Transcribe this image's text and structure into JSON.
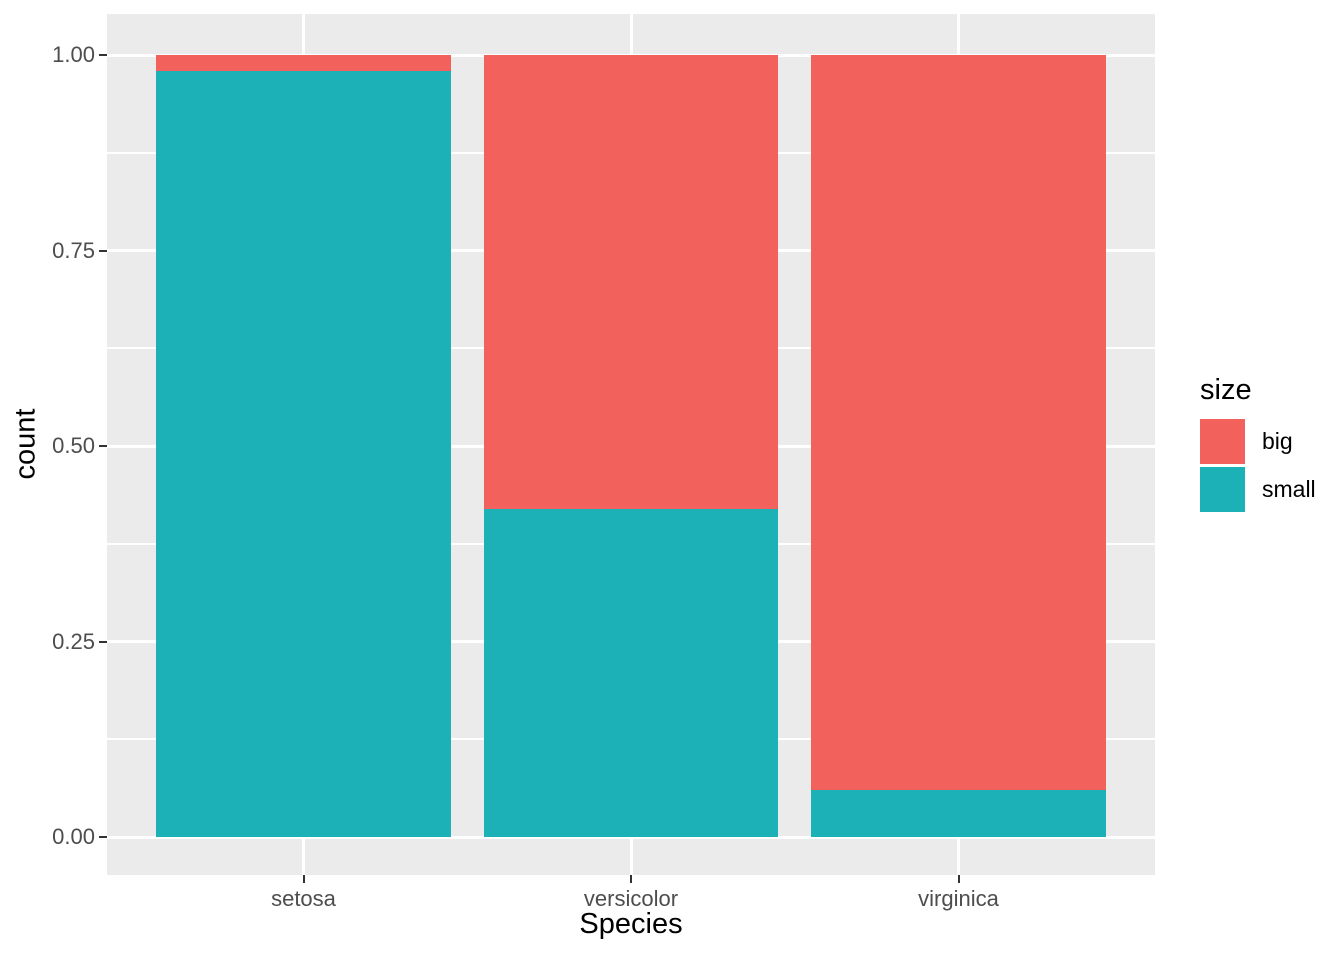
{
  "chart_data": {
    "type": "bar",
    "subtype": "stacked-normalized",
    "orientation": "vertical",
    "categories": [
      "setosa",
      "versicolor",
      "virginica"
    ],
    "series": [
      {
        "name": "big",
        "color": "#F2615C",
        "values": [
          0.02,
          0.58,
          0.94
        ]
      },
      {
        "name": "small",
        "color": "#1BB1B6",
        "values": [
          0.98,
          0.42,
          0.06
        ]
      }
    ],
    "title": "",
    "xlabel": "Species",
    "ylabel": "count",
    "ylim": [
      0,
      1
    ],
    "y_ticks": [
      0,
      0.25,
      0.5,
      0.75,
      1
    ],
    "y_tick_labels": [
      "0.00",
      "0.25",
      "0.50",
      "0.75",
      "1.00"
    ],
    "y_minor_ticks": [
      0.125,
      0.375,
      0.625,
      0.875
    ],
    "grid": true,
    "panel_background": "#EBEBEB",
    "grid_color": "#FFFFFF",
    "axis_text_color": "#4D4D4D",
    "legend": {
      "title": "size",
      "position": "right",
      "entries": [
        {
          "label": "big",
          "color": "#F2615C"
        },
        {
          "label": "small",
          "color": "#1BB1B6"
        }
      ]
    }
  }
}
